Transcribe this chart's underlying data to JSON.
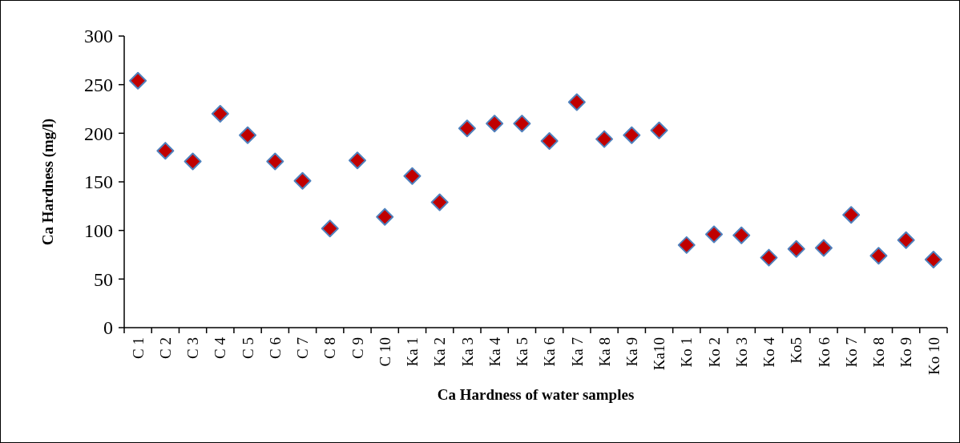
{
  "chart_data": {
    "type": "scatter",
    "xlabel": "Ca Hardness of water samples",
    "ylabel": "Ca Hardness (mg/l)",
    "categories": [
      "C 1",
      "C 2",
      "C 3",
      "C 4",
      "C 5",
      "C 6",
      "C 7",
      "C 8",
      "C 9",
      "C 10",
      "Ka 1",
      "Ka 2",
      "Ka 3",
      "Ka 4",
      "Ka 5",
      "Ka 6",
      "Ka 7",
      "Ka 8",
      "Ka 9",
      "Ka10",
      "Ko 1",
      "Ko 2",
      "Ko 3",
      "Ko 4",
      "Ko5",
      "Ko 6",
      "Ko 7",
      "Ko 8",
      "Ko 9",
      "Ko 10"
    ],
    "series": [
      {
        "color": "#c00000",
        "values": [
          254,
          182,
          171,
          220,
          198,
          171,
          151,
          102,
          172,
          114,
          156,
          129,
          205,
          210,
          210,
          192,
          232,
          194,
          198,
          203,
          85,
          96,
          95,
          72,
          81,
          82,
          116,
          74,
          90,
          70
        ]
      }
    ],
    "ylim": [
      0,
      300
    ],
    "yticks": [
      0,
      50,
      100,
      150,
      200,
      250,
      300
    ],
    "marker": "diamond",
    "grid": false
  }
}
